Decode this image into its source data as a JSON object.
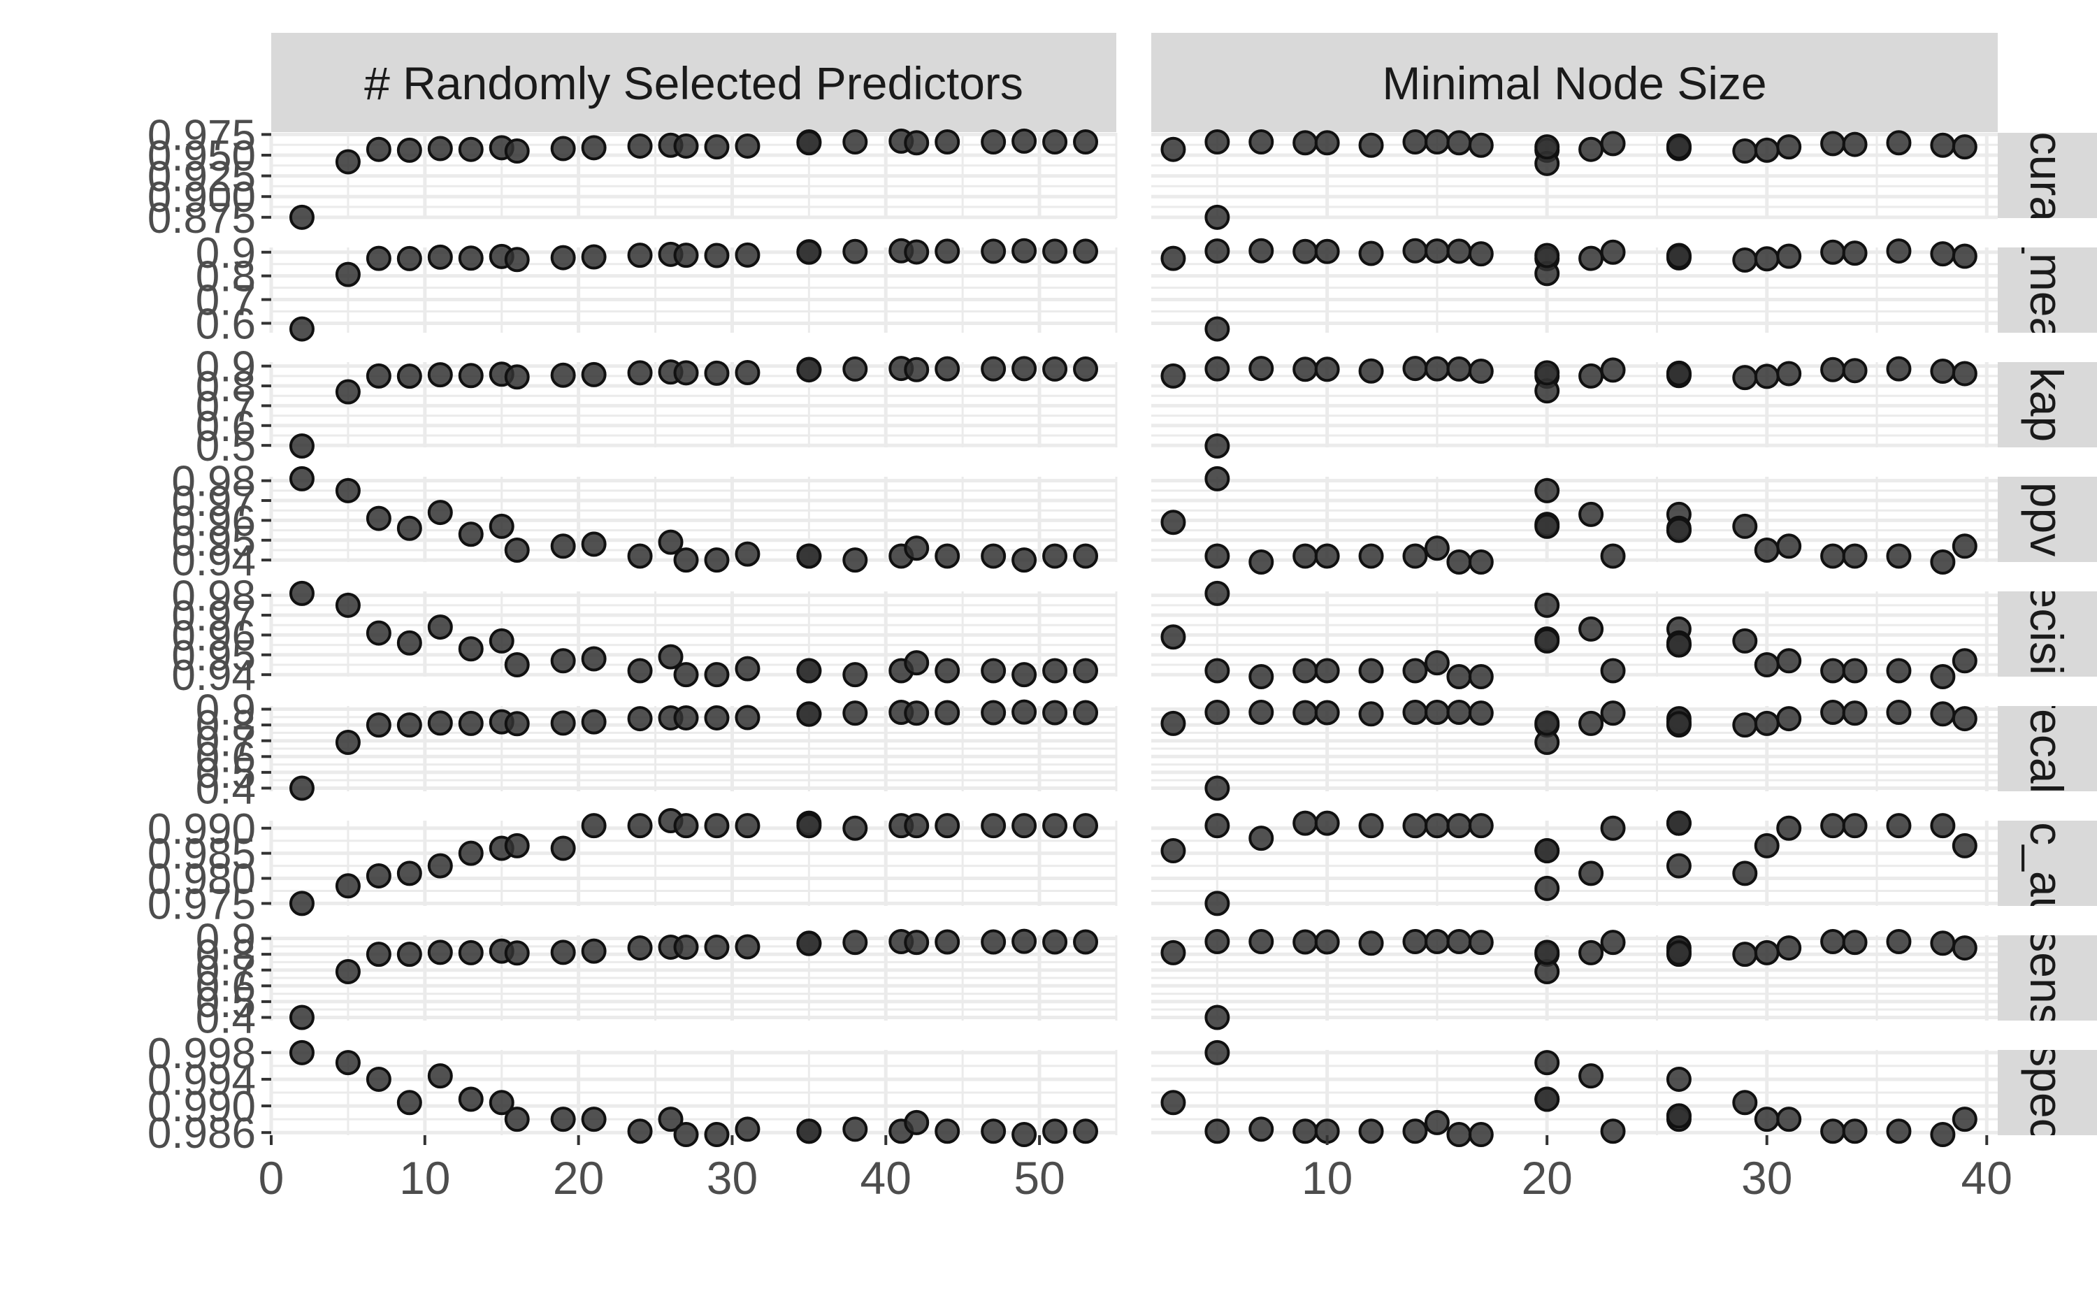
{
  "chart_data": {
    "type": "scatter",
    "layout": "facet_grid",
    "columns": [
      {
        "id": "mtry",
        "label": "# Randomly Selected Predictors",
        "xlim": [
          0,
          55
        ],
        "xticks": [
          0,
          10,
          20,
          30,
          40,
          50
        ],
        "tick_labels": [
          "0",
          "10",
          "20",
          "30",
          "40",
          "50"
        ]
      },
      {
        "id": "min_n",
        "label": "Minimal Node Size",
        "xlim": [
          2,
          40.5
        ],
        "xticks": [
          10,
          20,
          30,
          40
        ],
        "tick_labels": [
          "10",
          "20",
          "30",
          "40"
        ]
      }
    ],
    "rows": [
      {
        "id": "accuracy",
        "strip": "accuracy",
        "ylim": [
          0.874,
          0.977
        ],
        "yticks": [
          0.875,
          0.9,
          0.925,
          0.95,
          0.975
        ],
        "tick_labels": [
          "0.875",
          "0.900",
          "0.925",
          "0.950",
          "0.975"
        ]
      },
      {
        "id": "f_meas",
        "strip": "f_meas",
        "ylim": [
          0.56,
          0.92
        ],
        "yticks": [
          0.6,
          0.7,
          0.8,
          0.9
        ],
        "tick_labels": [
          "0.6",
          "0.7",
          "0.8",
          "0.9"
        ]
      },
      {
        "id": "kap",
        "strip": "kap",
        "ylim": [
          0.49,
          0.92
        ],
        "yticks": [
          0.5,
          0.6,
          0.7,
          0.8,
          0.9
        ],
        "tick_labels": [
          "0.5",
          "0.6",
          "0.7",
          "0.8",
          "0.9"
        ]
      },
      {
        "id": "ppv",
        "strip": "ppv",
        "ylim": [
          0.939,
          0.982
        ],
        "yticks": [
          0.94,
          0.95,
          0.96,
          0.97,
          0.98
        ],
        "tick_labels": [
          "0.94",
          "0.95",
          "0.96",
          "0.97",
          "0.98"
        ]
      },
      {
        "id": "precision",
        "strip": "precision",
        "ylim": [
          0.939,
          0.982
        ],
        "yticks": [
          0.94,
          0.95,
          0.96,
          0.97,
          0.98
        ],
        "tick_labels": [
          "0.94",
          "0.95",
          "0.96",
          "0.97",
          "0.98"
        ]
      },
      {
        "id": "recall",
        "strip": "recall",
        "ylim": [
          0.38,
          0.92
        ],
        "yticks": [
          0.4,
          0.5,
          0.6,
          0.7,
          0.8,
          0.9
        ],
        "tick_labels": [
          "0.4",
          "0.5",
          "0.6",
          "0.7",
          "0.8",
          "0.9"
        ]
      },
      {
        "id": "roc_auc",
        "strip": "roc_auc",
        "ylim": [
          0.9745,
          0.9915
        ],
        "yticks": [
          0.975,
          0.98,
          0.985,
          0.99
        ],
        "tick_labels": [
          "0.975",
          "0.980",
          "0.985",
          "0.990"
        ]
      },
      {
        "id": "sens",
        "strip": "sens",
        "ylim": [
          0.38,
          0.92
        ],
        "yticks": [
          0.4,
          0.5,
          0.6,
          0.7,
          0.8,
          0.9
        ],
        "tick_labels": [
          "0.4",
          "0.5",
          "0.6",
          "0.7",
          "0.8",
          "0.9"
        ]
      },
      {
        "id": "spec",
        "strip": "spec",
        "ylim": [
          0.9856,
          0.9984
        ],
        "yticks": [
          0.986,
          0.99,
          0.994,
          0.998
        ],
        "tick_labels": [
          "0.986",
          "0.990",
          "0.994",
          "0.998"
        ]
      }
    ],
    "series": {
      "mtry": {
        "x": [
          2,
          5,
          7,
          9,
          11,
          13,
          15,
          16,
          19,
          21,
          24,
          26,
          27,
          29,
          31,
          35,
          35,
          38,
          41,
          42,
          44,
          47,
          49,
          51,
          53
        ],
        "y": {
          "accuracy": [
            0.875,
            0.942,
            0.957,
            0.956,
            0.958,
            0.957,
            0.959,
            0.955,
            0.958,
            0.959,
            0.961,
            0.962,
            0.961,
            0.96,
            0.961,
            0.966,
            0.965,
            0.966,
            0.967,
            0.965,
            0.966,
            0.966,
            0.967,
            0.966,
            0.966
          ],
          "f_meas": [
            0.576,
            0.806,
            0.874,
            0.873,
            0.879,
            0.875,
            0.882,
            0.869,
            0.877,
            0.88,
            0.887,
            0.891,
            0.887,
            0.886,
            0.888,
            0.902,
            0.9,
            0.903,
            0.906,
            0.901,
            0.904,
            0.904,
            0.906,
            0.904,
            0.904
          ],
          "kap": [
            0.497,
            0.77,
            0.85,
            0.849,
            0.856,
            0.852,
            0.859,
            0.845,
            0.854,
            0.857,
            0.866,
            0.87,
            0.866,
            0.864,
            0.867,
            0.883,
            0.881,
            0.885,
            0.888,
            0.882,
            0.886,
            0.886,
            0.887,
            0.885,
            0.885
          ],
          "ppv": [
            0.981,
            0.975,
            0.961,
            0.956,
            0.964,
            0.953,
            0.957,
            0.945,
            0.947,
            0.948,
            0.942,
            0.949,
            0.94,
            0.94,
            0.943,
            0.942,
            0.942,
            0.94,
            0.942,
            0.946,
            0.942,
            0.942,
            0.94,
            0.942,
            0.942
          ],
          "precision": [
            0.981,
            0.975,
            0.961,
            0.956,
            0.964,
            0.953,
            0.957,
            0.945,
            0.947,
            0.948,
            0.942,
            0.949,
            0.94,
            0.94,
            0.943,
            0.942,
            0.942,
            0.94,
            0.942,
            0.946,
            0.942,
            0.942,
            0.94,
            0.942,
            0.942
          ],
          "recall": [
            0.4,
            0.69,
            0.8,
            0.8,
            0.812,
            0.81,
            0.82,
            0.808,
            0.812,
            0.82,
            0.84,
            0.845,
            0.845,
            0.845,
            0.847,
            0.87,
            0.868,
            0.875,
            0.88,
            0.875,
            0.878,
            0.878,
            0.882,
            0.878,
            0.878
          ],
          "roc_auc": [
            0.975,
            0.9785,
            0.9805,
            0.981,
            0.9825,
            0.985,
            0.986,
            0.9865,
            0.986,
            0.9905,
            0.9905,
            0.9915,
            0.9905,
            0.9905,
            0.9905,
            0.991,
            0.9905,
            0.99,
            0.9905,
            0.9905,
            0.9905,
            0.9905,
            0.9905,
            0.9905,
            0.9905
          ],
          "spec": [
            0.998,
            0.9965,
            0.994,
            0.9905,
            0.9945,
            0.991,
            0.9905,
            0.988,
            0.988,
            0.988,
            0.9862,
            0.988,
            0.9857,
            0.9857,
            0.9865,
            0.9862,
            0.9862,
            0.9865,
            0.9862,
            0.9875,
            0.9862,
            0.9862,
            0.9857,
            0.9862,
            0.9862
          ],
          "sens": [
            0.4,
            0.69,
            0.8,
            0.8,
            0.812,
            0.81,
            0.82,
            0.808,
            0.812,
            0.82,
            0.84,
            0.845,
            0.845,
            0.845,
            0.847,
            0.87,
            0.868,
            0.875,
            0.88,
            0.875,
            0.878,
            0.878,
            0.882,
            0.878,
            0.878
          ]
        }
      },
      "min_n": {
        "x": [
          3,
          5,
          5,
          7,
          9,
          10,
          12,
          14,
          15,
          16,
          17,
          20,
          20,
          20,
          22,
          23,
          26,
          26,
          26,
          26,
          29,
          30,
          31,
          33,
          34,
          36,
          38,
          39
        ],
        "y": {
          "accuracy": [
            0.957,
            0.966,
            0.875,
            0.966,
            0.965,
            0.965,
            0.962,
            0.966,
            0.966,
            0.965,
            0.962,
            0.956,
            0.94,
            0.96,
            0.957,
            0.964,
            0.959,
            0.961,
            0.958,
            0.96,
            0.955,
            0.956,
            0.96,
            0.964,
            0.963,
            0.965,
            0.962,
            0.96
          ],
          "f_meas": [
            0.874,
            0.905,
            0.576,
            0.906,
            0.903,
            0.903,
            0.895,
            0.906,
            0.905,
            0.904,
            0.893,
            0.873,
            0.81,
            0.886,
            0.874,
            0.9,
            0.88,
            0.886,
            0.876,
            0.883,
            0.867,
            0.872,
            0.883,
            0.9,
            0.896,
            0.905,
            0.893,
            0.883
          ],
          "kap": [
            0.85,
            0.886,
            0.497,
            0.888,
            0.884,
            0.884,
            0.875,
            0.888,
            0.886,
            0.885,
            0.874,
            0.849,
            0.775,
            0.866,
            0.85,
            0.88,
            0.856,
            0.864,
            0.852,
            0.861,
            0.842,
            0.848,
            0.862,
            0.882,
            0.877,
            0.886,
            0.874,
            0.862
          ],
          "ppv": [
            0.959,
            0.942,
            0.981,
            0.939,
            0.942,
            0.942,
            0.942,
            0.942,
            0.946,
            0.939,
            0.939,
            0.975,
            0.958,
            0.957,
            0.963,
            0.942,
            0.963,
            0.955,
            0.956,
            0.955,
            0.957,
            0.945,
            0.947,
            0.942,
            0.942,
            0.942,
            0.939,
            0.947
          ],
          "precision": [
            0.959,
            0.942,
            0.981,
            0.939,
            0.942,
            0.942,
            0.942,
            0.942,
            0.946,
            0.939,
            0.939,
            0.975,
            0.958,
            0.957,
            0.963,
            0.942,
            0.963,
            0.955,
            0.956,
            0.955,
            0.957,
            0.945,
            0.947,
            0.942,
            0.942,
            0.942,
            0.939,
            0.947
          ],
          "recall": [
            0.81,
            0.88,
            0.4,
            0.88,
            0.878,
            0.878,
            0.87,
            0.88,
            0.88,
            0.88,
            0.875,
            0.8,
            0.69,
            0.812,
            0.81,
            0.875,
            0.82,
            0.84,
            0.8,
            0.808,
            0.8,
            0.81,
            0.84,
            0.88,
            0.875,
            0.88,
            0.87,
            0.84
          ],
          "roc_auc": [
            0.9855,
            0.9905,
            0.975,
            0.988,
            0.991,
            0.991,
            0.9905,
            0.9905,
            0.9905,
            0.9905,
            0.9905,
            0.9855,
            0.978,
            0.9855,
            0.981,
            0.99,
            0.991,
            0.9825,
            0.991,
            0.991,
            0.981,
            0.9865,
            0.99,
            0.9905,
            0.9905,
            0.9905,
            0.9905,
            0.9865
          ],
          "spec": [
            0.9905,
            0.9862,
            0.998,
            0.9865,
            0.9862,
            0.9862,
            0.9862,
            0.9862,
            0.9875,
            0.9857,
            0.9857,
            0.9965,
            0.991,
            0.991,
            0.9945,
            0.9862,
            0.994,
            0.9885,
            0.988,
            0.9885,
            0.9905,
            0.988,
            0.988,
            0.9862,
            0.9862,
            0.9862,
            0.9857,
            0.988
          ],
          "sens": [
            0.81,
            0.88,
            0.4,
            0.88,
            0.878,
            0.878,
            0.87,
            0.88,
            0.88,
            0.88,
            0.875,
            0.8,
            0.69,
            0.812,
            0.81,
            0.875,
            0.82,
            0.84,
            0.8,
            0.808,
            0.8,
            0.81,
            0.84,
            0.88,
            0.875,
            0.88,
            0.87,
            0.84
          ]
        }
      }
    },
    "grid": true,
    "legend": "none",
    "colors": {
      "point_fill": "#333333",
      "point_stroke": "#111111",
      "strip_bg": "#d9d9d9",
      "grid": "#ebebeb",
      "tick": "#333333",
      "text": "#4d4d4d"
    }
  }
}
